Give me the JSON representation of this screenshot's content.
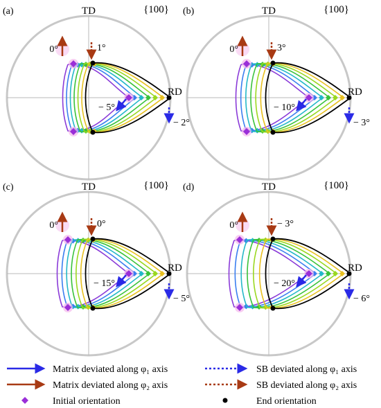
{
  "figure": {
    "axis_td": "TD",
    "axis_rd": "RD",
    "pole": "{100}",
    "colors": {
      "circle": "#c8c8c8",
      "phi1_arrow": "#2a2ae6",
      "phi2_arrow": "#a83a14",
      "initial_marker": "#9a2ed8",
      "end_marker": "#000000",
      "glow": "#f5b8ec",
      "curve_colors": [
        "#8a3ad8",
        "#3a7ef0",
        "#24b8c8",
        "#39c23a",
        "#9ad820",
        "#e8c020",
        "#000000"
      ]
    },
    "panels": [
      {
        "label": "(a)",
        "phi2_solid": "0°",
        "phi2_dotted": "1°",
        "phi1_solid": "− 5°",
        "phi1_dotted": "− 2°"
      },
      {
        "label": "(b)",
        "phi2_solid": "0°",
        "phi2_dotted": "3°",
        "phi1_solid": "− 10°",
        "phi1_dotted": "− 3°"
      },
      {
        "label": "(c)",
        "phi2_solid": "0°",
        "phi2_dotted": "0°",
        "phi1_solid": "− 15°",
        "phi1_dotted": "− 5°"
      },
      {
        "label": "(d)",
        "phi2_solid": "0°",
        "phi2_dotted": "− 3°",
        "phi1_solid": "− 20°",
        "phi1_dotted": "− 6°"
      }
    ]
  },
  "legend": {
    "matrix_phi1": "Matrix deviated along φ₁ axis",
    "matrix_phi2": "Matrix deviated along φ₂ axis",
    "initial": "Initial orientation",
    "sb_phi1": "SB deviated along φ₁ axis",
    "sb_phi2": "SB deviated along φ₂ axis",
    "end": "End orientation"
  }
}
